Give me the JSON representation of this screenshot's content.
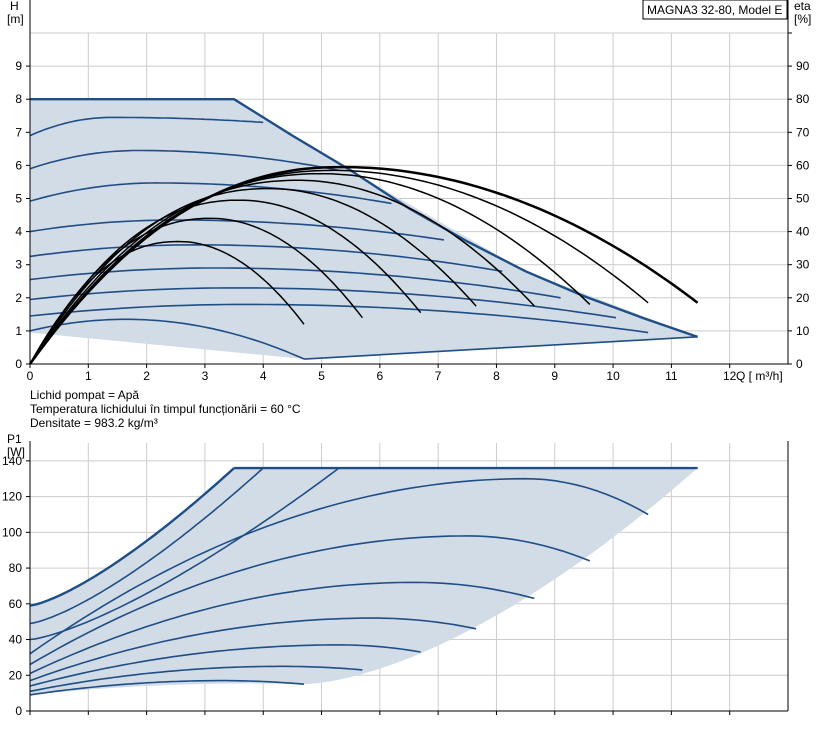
{
  "title_box": "MAGNA3 32-80, Model E",
  "info": {
    "line1": "Lichid pompat = Apă",
    "line2": " Temperatura lichidului în timpul funcționării = 60 °C",
    "line3": "Densitate = 983.2  kg/m³"
  },
  "chart_data": [
    {
      "type": "line",
      "name": "H-Q",
      "ylabel_top": "H",
      "ylabel_unit": "[m]",
      "y2label_top": "eta",
      "y2label_unit": "[%]",
      "xlabel": "Q [ m³/h]",
      "xlim": [
        0,
        13
      ],
      "ylim": [
        0,
        10
      ],
      "y2lim": [
        0,
        100
      ],
      "x_ticks": [
        0,
        1,
        2,
        3,
        4,
        5,
        6,
        7,
        8,
        9,
        10,
        11,
        12
      ],
      "y_ticks": [
        0,
        1,
        2,
        3,
        4,
        5,
        6,
        7,
        8,
        9
      ],
      "y2_ticks": [
        0,
        10,
        20,
        30,
        40,
        50,
        60,
        70,
        80,
        90
      ],
      "grid": true,
      "operating_area": [
        [
          0,
          8.0
        ],
        [
          3.5,
          8.0
        ],
        [
          5.5,
          5.85
        ],
        [
          8.5,
          2.8
        ],
        [
          11.45,
          0.82
        ],
        [
          4.7,
          0.15
        ],
        [
          0,
          0.95
        ]
      ],
      "max_curve": [
        [
          0,
          8.0
        ],
        [
          3.5,
          8.0
        ],
        [
          4.5,
          6.9
        ],
        [
          5.5,
          5.85
        ],
        [
          6.5,
          4.7
        ],
        [
          7.5,
          3.7
        ],
        [
          8.5,
          2.8
        ],
        [
          9.5,
          2.05
        ],
        [
          10.5,
          1.4
        ],
        [
          11.45,
          0.82
        ]
      ],
      "speed_curves": [
        {
          "h0": 6.9,
          "qmax": 4.0
        },
        {
          "h0": 5.9,
          "qmax": 5.3
        },
        {
          "h0": 4.92,
          "qmax": 6.2
        },
        {
          "h0": 4.0,
          "qmax": 7.1
        },
        {
          "h0": 3.25,
          "qmax": 8.1
        },
        {
          "h0": 2.55,
          "qmax": 9.1
        },
        {
          "h0": 1.95,
          "qmax": 10.05
        },
        {
          "h0": 1.45,
          "qmax": 10.6
        },
        {
          "h0": 1.0,
          "qmax": 4.7
        }
      ],
      "speed_curve_ends": [
        {
          "q": 4.0,
          "h": 7.3
        },
        {
          "q": 5.3,
          "h": 5.85
        },
        {
          "q": 6.2,
          "h": 4.85
        },
        {
          "q": 7.1,
          "h": 3.75
        },
        {
          "q": 8.1,
          "h": 2.8
        },
        {
          "q": 9.1,
          "h": 2.0
        },
        {
          "q": 10.05,
          "h": 1.4
        },
        {
          "q": 10.6,
          "h": 0.95
        },
        {
          "q": 4.7,
          "h": 0.15
        }
      ],
      "efficiency_curves": [
        {
          "qend": 4.7,
          "peak": 37,
          "qpeak": 2.55,
          "end": 12
        },
        {
          "qend": 5.7,
          "peak": 44,
          "qpeak": 3.1,
          "end": 14
        },
        {
          "qend": 6.7,
          "peak": 49.5,
          "qpeak": 3.6,
          "end": 15.5
        },
        {
          "qend": 7.65,
          "peak": 53,
          "qpeak": 4.1,
          "end": 17.5
        },
        {
          "qend": 8.65,
          "peak": 55.5,
          "qpeak": 4.6,
          "end": 17.5
        },
        {
          "qend": 9.6,
          "peak": 57.5,
          "qpeak": 5.0,
          "end": 18
        },
        {
          "qend": 10.6,
          "peak": 58.5,
          "qpeak": 5.2,
          "end": 18.5
        },
        {
          "qend": 11.45,
          "peak": 59.5,
          "qpeak": 5.35,
          "end": 18.5,
          "thick": true
        }
      ]
    },
    {
      "type": "line",
      "name": "P1-Q",
      "ylabel_top": "P1",
      "ylabel_unit": "[W]",
      "xlim": [
        0,
        13
      ],
      "ylim": [
        0,
        150
      ],
      "y_ticks": [
        0,
        20,
        40,
        60,
        80,
        100,
        120,
        140
      ],
      "grid": true,
      "max_power": 136,
      "operating_area": [
        [
          0,
          59
        ],
        [
          3.5,
          136
        ],
        [
          11.45,
          136
        ],
        [
          4.7,
          15
        ],
        [
          0,
          9
        ]
      ],
      "power_curves": [
        {
          "p0": 59,
          "qend": 3.5,
          "pend": 136,
          "qpeak": 3.5
        },
        {
          "p0": 49,
          "qend": 4.0,
          "pend": 136,
          "qpeak": 4.0
        },
        {
          "p0": 40,
          "qend": 5.3,
          "pend": 136,
          "qpeak": 5.3
        },
        {
          "p0": 32,
          "qend": 10.6,
          "pend": 110,
          "qpeak": 8.5,
          "ppeak": 130
        },
        {
          "p0": 26,
          "qend": 9.6,
          "pend": 84,
          "qpeak": 7.5,
          "ppeak": 98
        },
        {
          "p0": 21,
          "qend": 8.65,
          "pend": 63,
          "qpeak": 6.6,
          "ppeak": 72
        },
        {
          "p0": 17,
          "qend": 7.65,
          "pend": 46,
          "qpeak": 5.9,
          "ppeak": 52
        },
        {
          "p0": 14,
          "qend": 6.7,
          "pend": 33,
          "qpeak": 5.3,
          "ppeak": 37
        },
        {
          "p0": 11,
          "qend": 5.7,
          "pend": 23,
          "qpeak": 4.3,
          "ppeak": 25
        },
        {
          "p0": 9,
          "qend": 4.7,
          "pend": 15,
          "qpeak": 3.3,
          "ppeak": 17
        }
      ]
    }
  ]
}
